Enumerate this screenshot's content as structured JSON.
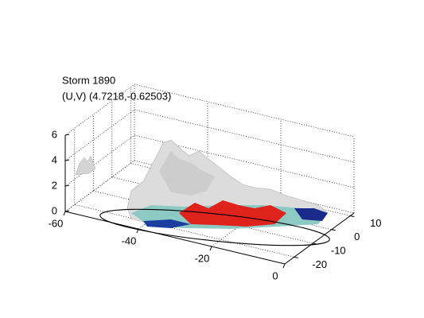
{
  "chart_data": {
    "type": "surface3d",
    "title": "Storm 1890",
    "subtitle": "(U,V) (4.7218,-0.62503)",
    "xlim": [
      -60,
      0
    ],
    "xticks": [
      -60,
      -40,
      -20,
      0
    ],
    "ylim": [
      -25,
      12
    ],
    "yticks": [
      -20,
      -10,
      0,
      10
    ],
    "zlim": [
      0,
      6
    ],
    "zticks": [
      0,
      2,
      4,
      6
    ],
    "grid": true
  }
}
